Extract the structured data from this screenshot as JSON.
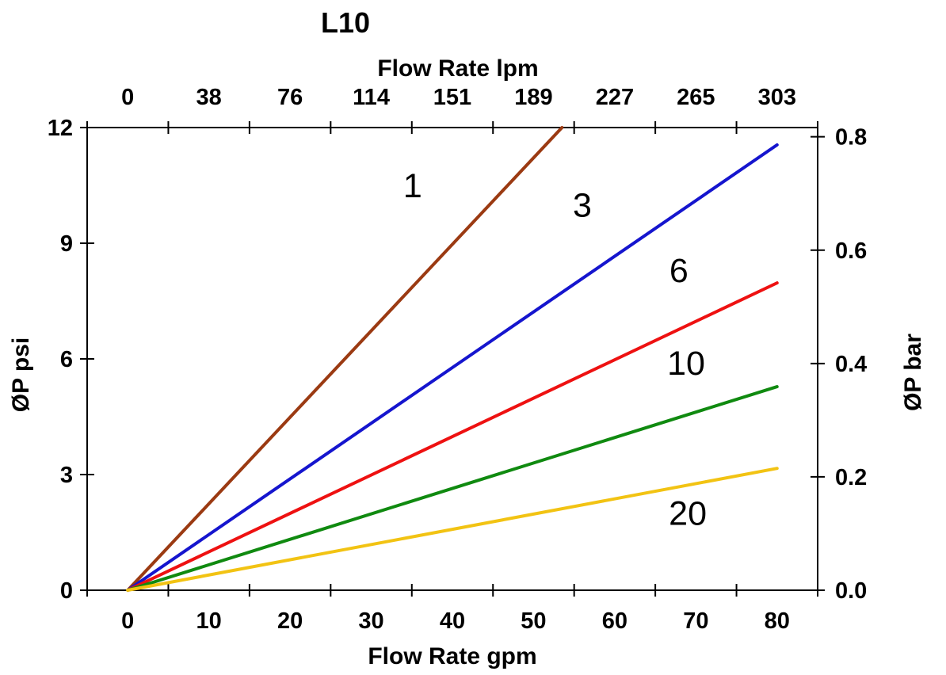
{
  "chart_data": {
    "type": "line",
    "title": "L10",
    "x_bottom": {
      "label": "Flow Rate gpm",
      "ticks": [
        "0",
        "10",
        "20",
        "30",
        "40",
        "50",
        "60",
        "70",
        "80"
      ],
      "range_gpm": [
        0,
        80
      ],
      "tick_style": "boundary ticks between labels"
    },
    "x_top": {
      "label": "Flow Rate lpm",
      "ticks": [
        "0",
        "38",
        "76",
        "114",
        "151",
        "189",
        "227",
        "265",
        "303"
      ],
      "tick_style": "boundary ticks between labels"
    },
    "y_left": {
      "label": "ØP psi",
      "ticks": [
        "0",
        "3",
        "6",
        "9",
        "12"
      ],
      "range_psi": [
        0,
        12
      ]
    },
    "y_right": {
      "label": "ØP bar",
      "ticks": [
        "0.0",
        "0.2",
        "0.4",
        "0.6",
        "0.8"
      ],
      "psi_per_bar": 14.7
    },
    "grid": "off",
    "legend": "inline labels next to lines",
    "axis_color": "#000000",
    "background_color": "#FFFFFF",
    "series": [
      {
        "label": "1",
        "color": "#9B3A12",
        "points_gpm_psi": [
          [
            0,
            0
          ],
          [
            53.5,
            12
          ]
        ],
        "label_at_gpm_psi": [
          35.1,
          10.5
        ]
      },
      {
        "label": "3",
        "color": "#1515CE",
        "points_gpm_psi": [
          [
            0,
            0
          ],
          [
            80,
            11.55
          ]
        ],
        "label_at_gpm_psi": [
          56.0,
          10.0
        ]
      },
      {
        "label": "6",
        "color": "#EE1111",
        "points_gpm_psi": [
          [
            0,
            0
          ],
          [
            80,
            7.97
          ]
        ],
        "label_at_gpm_psi": [
          67.9,
          8.3
        ]
      },
      {
        "label": "10",
        "color": "#108A10",
        "points_gpm_psi": [
          [
            0,
            0
          ],
          [
            80,
            5.28
          ]
        ],
        "label_at_gpm_psi": [
          68.8,
          5.9
        ]
      },
      {
        "label": "20",
        "color": "#F2C313",
        "points_gpm_psi": [
          [
            0,
            0
          ],
          [
            80,
            3.16
          ]
        ],
        "label_at_gpm_psi": [
          69.0,
          2.0
        ]
      }
    ]
  }
}
